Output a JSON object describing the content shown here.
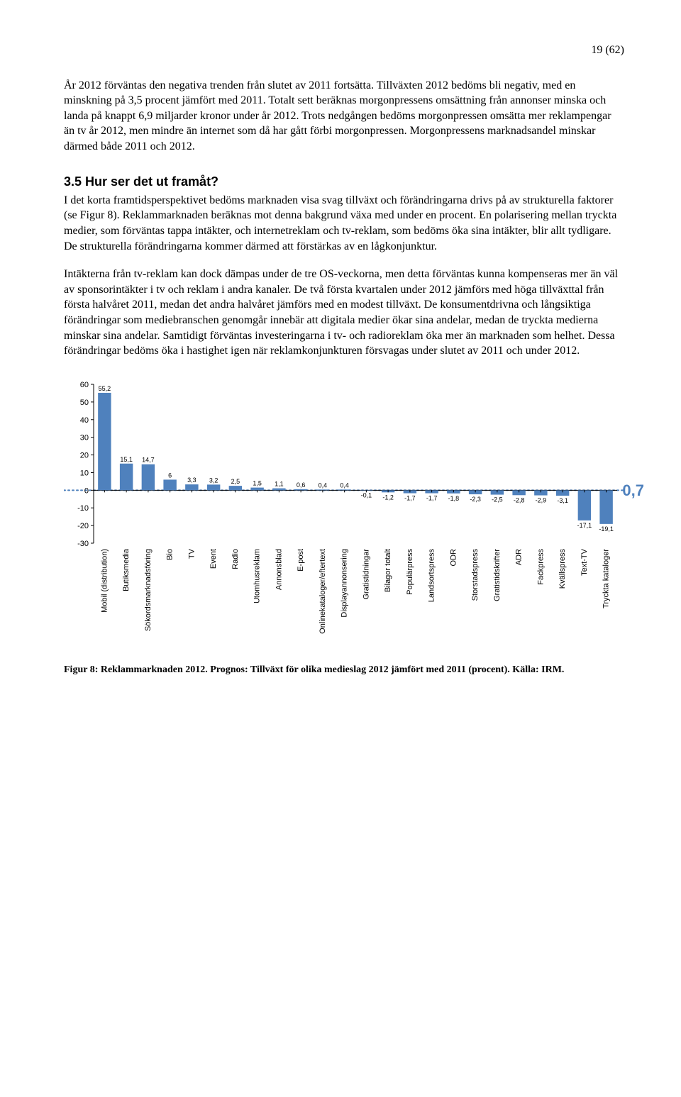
{
  "page_number": "19 (62)",
  "para1": "År 2012 förväntas den negativa trenden från slutet av 2011 fortsätta. Tillväxten 2012 bedöms bli negativ, med en minskning på 3,5 procent jämfört med 2011. Totalt sett beräknas morgonpressens omsättning från annonser minska och landa på knappt 6,9 miljarder kronor under år 2012. Trots nedgången bedöms morgonpressen omsätta mer reklampengar än tv år 2012, men mindre än internet som då har gått förbi morgonpressen. Morgonpressens marknadsandel minskar därmed både 2011 och 2012.",
  "heading": "3.5  Hur ser det ut framåt?",
  "para2": "I det korta framtidsperspektivet bedöms marknaden visa svag tillväxt och förändringarna drivs på av strukturella faktorer (se Figur 8). Reklammarknaden beräknas mot denna bakgrund växa med under en procent. En polarisering mellan tryckta medier, som förväntas tappa intäkter, och internetreklam och tv-reklam, som bedöms öka sina intäkter, blir allt tydligare. De strukturella förändringarna kommer därmed att förstärkas av en lågkonjunktur.",
  "para3": "Intäkterna från tv-reklam kan dock dämpas under de tre OS-veckorna, men detta förväntas kunna kompenseras mer än väl av sponsorintäkter i tv och reklam i andra kanaler. De två första kvartalen under 2012 jämförs med höga tillväxttal från första halvåret 2011, medan det andra halvåret jämförs med en modest tillväxt. De konsumentdrivna och långsiktiga förändringar som mediebranschen genomgår innebär att digitala medier ökar sina andelar, medan de tryckta medierna minskar sina andelar. Samtidigt förväntas investeringarna i tv- och radioreklam öka mer än marknaden som helhet. Dessa förändringar bedöms öka i hastighet igen när reklamkonjunkturen försvagas under slutet av 2011 och under 2012.",
  "chart": {
    "type": "bar",
    "categories": [
      "Mobil (distribution)",
      "Butiksmedia",
      "Sökordsmarknadsföring",
      "Bio",
      "TV",
      "Event",
      "Radio",
      "Utomhusreklam",
      "Annonsblad",
      "E-post",
      "Onlinekataloger/eftertext",
      "Displayannonsering",
      "Gratistidningar",
      "Bilagor totalt",
      "Populärpress",
      "Landsortspress",
      "ODR",
      "Storstadspress",
      "Gratistidskrifter",
      "ADR",
      "Fackpress",
      "Kvällspress",
      "Text-TV",
      "Tryckta kataloger"
    ],
    "values": [
      55.2,
      15.1,
      14.7,
      6.0,
      3.3,
      3.2,
      2.5,
      1.5,
      1.1,
      0.6,
      0.4,
      0.4,
      -0.1,
      -1.2,
      -1.7,
      -1.7,
      -1.8,
      -2.3,
      -2.5,
      -2.8,
      -2.9,
      -3.1,
      -17.1,
      -19.1
    ],
    "side_value": "0,7",
    "ylim": [
      -30,
      60
    ],
    "ytick_step": 10,
    "bar_color": "#4f81bd",
    "axis_color": "#000000",
    "dot_line_color": "#4f81bd",
    "label_fontsize": 11,
    "value_fontsize": 9,
    "tick_fontsize": 11,
    "font_family": "Arial, Helvetica, sans-serif",
    "bar_width_ratio": 0.6,
    "background_color": "#ffffff"
  },
  "caption": "Figur 8: Reklammarknaden 2012. Prognos: Tillväxt för olika medieslag 2012 jämfört med 2011 (procent). Källa: IRM."
}
